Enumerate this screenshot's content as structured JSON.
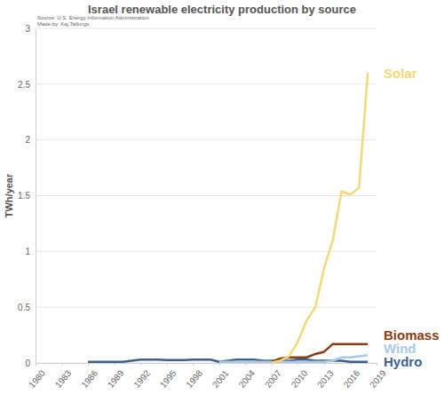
{
  "chart_data": {
    "type": "line",
    "title": "Israel renewable electricity production by source",
    "subtitle": [
      "Source: U.S. Energy Information Administration",
      "Made by: Kaj Tallungs"
    ],
    "y_label": "TWh/year",
    "x": [
      1986,
      1987,
      1988,
      1989,
      1990,
      1991,
      1992,
      1993,
      1994,
      1995,
      1996,
      1997,
      1998,
      1999,
      2000,
      2001,
      2002,
      2003,
      2004,
      2005,
      2006,
      2007,
      2008,
      2009,
      2010,
      2011,
      2012,
      2013,
      2014,
      2015,
      2016,
      2017,
      2018
    ],
    "series": [
      {
        "name": "Solar",
        "color": "#f3d87a",
        "values": [
          null,
          null,
          null,
          null,
          null,
          null,
          null,
          null,
          null,
          null,
          null,
          null,
          null,
          null,
          null,
          null,
          null,
          null,
          null,
          null,
          null,
          0.005,
          0.02,
          0.06,
          0.19,
          0.38,
          0.5,
          0.85,
          1.1,
          1.54,
          1.51,
          1.57,
          2.6
        ]
      },
      {
        "name": "Biomass",
        "color": "#8b3c12",
        "values": [
          null,
          null,
          null,
          null,
          null,
          null,
          null,
          null,
          null,
          null,
          null,
          null,
          null,
          null,
          null,
          null,
          null,
          null,
          null,
          null,
          null,
          0.01,
          0.04,
          0.05,
          0.05,
          0.05,
          0.08,
          0.1,
          0.17,
          0.17,
          0.17,
          0.17,
          0.17
        ]
      },
      {
        "name": "Wind",
        "color": "#a9c9e9",
        "values": [
          null,
          null,
          null,
          null,
          null,
          null,
          null,
          null,
          null,
          null,
          null,
          null,
          null,
          null,
          null,
          0.01,
          0.01,
          0.01,
          0.01,
          0.01,
          0.01,
          0.01,
          0.01,
          0.01,
          0.01,
          0.01,
          0.01,
          0.01,
          0.02,
          0.05,
          0.05,
          0.06,
          0.07
        ]
      },
      {
        "name": "Hydro",
        "color": "#3b5f8f",
        "values": [
          0.01,
          0.01,
          0.01,
          0.01,
          0.01,
          0.02,
          0.03,
          0.03,
          0.03,
          0.025,
          0.025,
          0.025,
          0.03,
          0.03,
          0.03,
          0.01,
          0.02,
          0.03,
          0.03,
          0.03,
          0.02,
          0.02,
          0.02,
          0.02,
          0.03,
          0.03,
          0.02,
          0.02,
          0.02,
          0.02,
          0.01,
          0.01,
          0.01
        ]
      }
    ],
    "xlim": [
      1980,
      2019
    ],
    "xticks": [
      1980,
      1983,
      1986,
      1989,
      1992,
      1995,
      1998,
      2001,
      2004,
      2007,
      2010,
      2013,
      2016,
      2019
    ],
    "ylim": [
      0,
      3
    ],
    "yticks": [
      0,
      0.5,
      1,
      1.5,
      2,
      2.5,
      3
    ],
    "grid": true
  }
}
